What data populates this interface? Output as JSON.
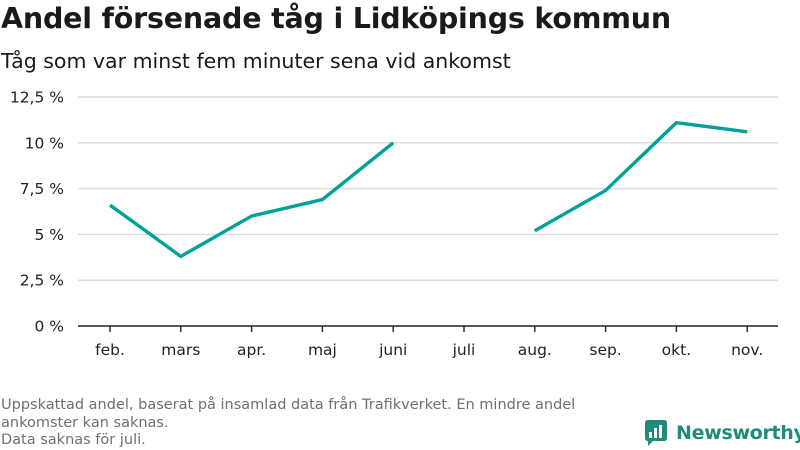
{
  "title": "Andel försenade tåg i Lidköpings kommun",
  "subtitle": "Tåg som var minst fem minuter sena vid ankomst",
  "chart_data": {
    "type": "line",
    "categories": [
      "feb.",
      "mars",
      "apr.",
      "maj",
      "juni",
      "juli",
      "aug.",
      "sep.",
      "okt.",
      "nov."
    ],
    "series": [
      {
        "values": [
          6.6,
          3.8,
          6.0,
          6.9,
          10.0,
          null,
          5.2,
          7.4,
          11.1,
          10.6
        ]
      }
    ],
    "yticks": [
      0,
      2.5,
      5,
      7.5,
      10,
      12.5
    ],
    "ytick_labels": [
      "0 %",
      "2,5 %",
      "5 %",
      "7,5 %",
      "10 %",
      "12,5 %"
    ],
    "ylim": [
      0,
      12.5
    ],
    "grid": true,
    "line_color": "#00a19a",
    "grid_color": "#d9d9d9",
    "axis_color": "#222222"
  },
  "footer": {
    "lines": [
      "Uppskattad andel, baserat på insamlad data från Trafikverket. En mindre andel",
      "ankomster kan saknas.",
      "Data saknas för juli."
    ]
  },
  "logo": {
    "name": "Newsworthy",
    "icon": "newsworthy-logo-icon",
    "color": "#1f8a7d"
  }
}
